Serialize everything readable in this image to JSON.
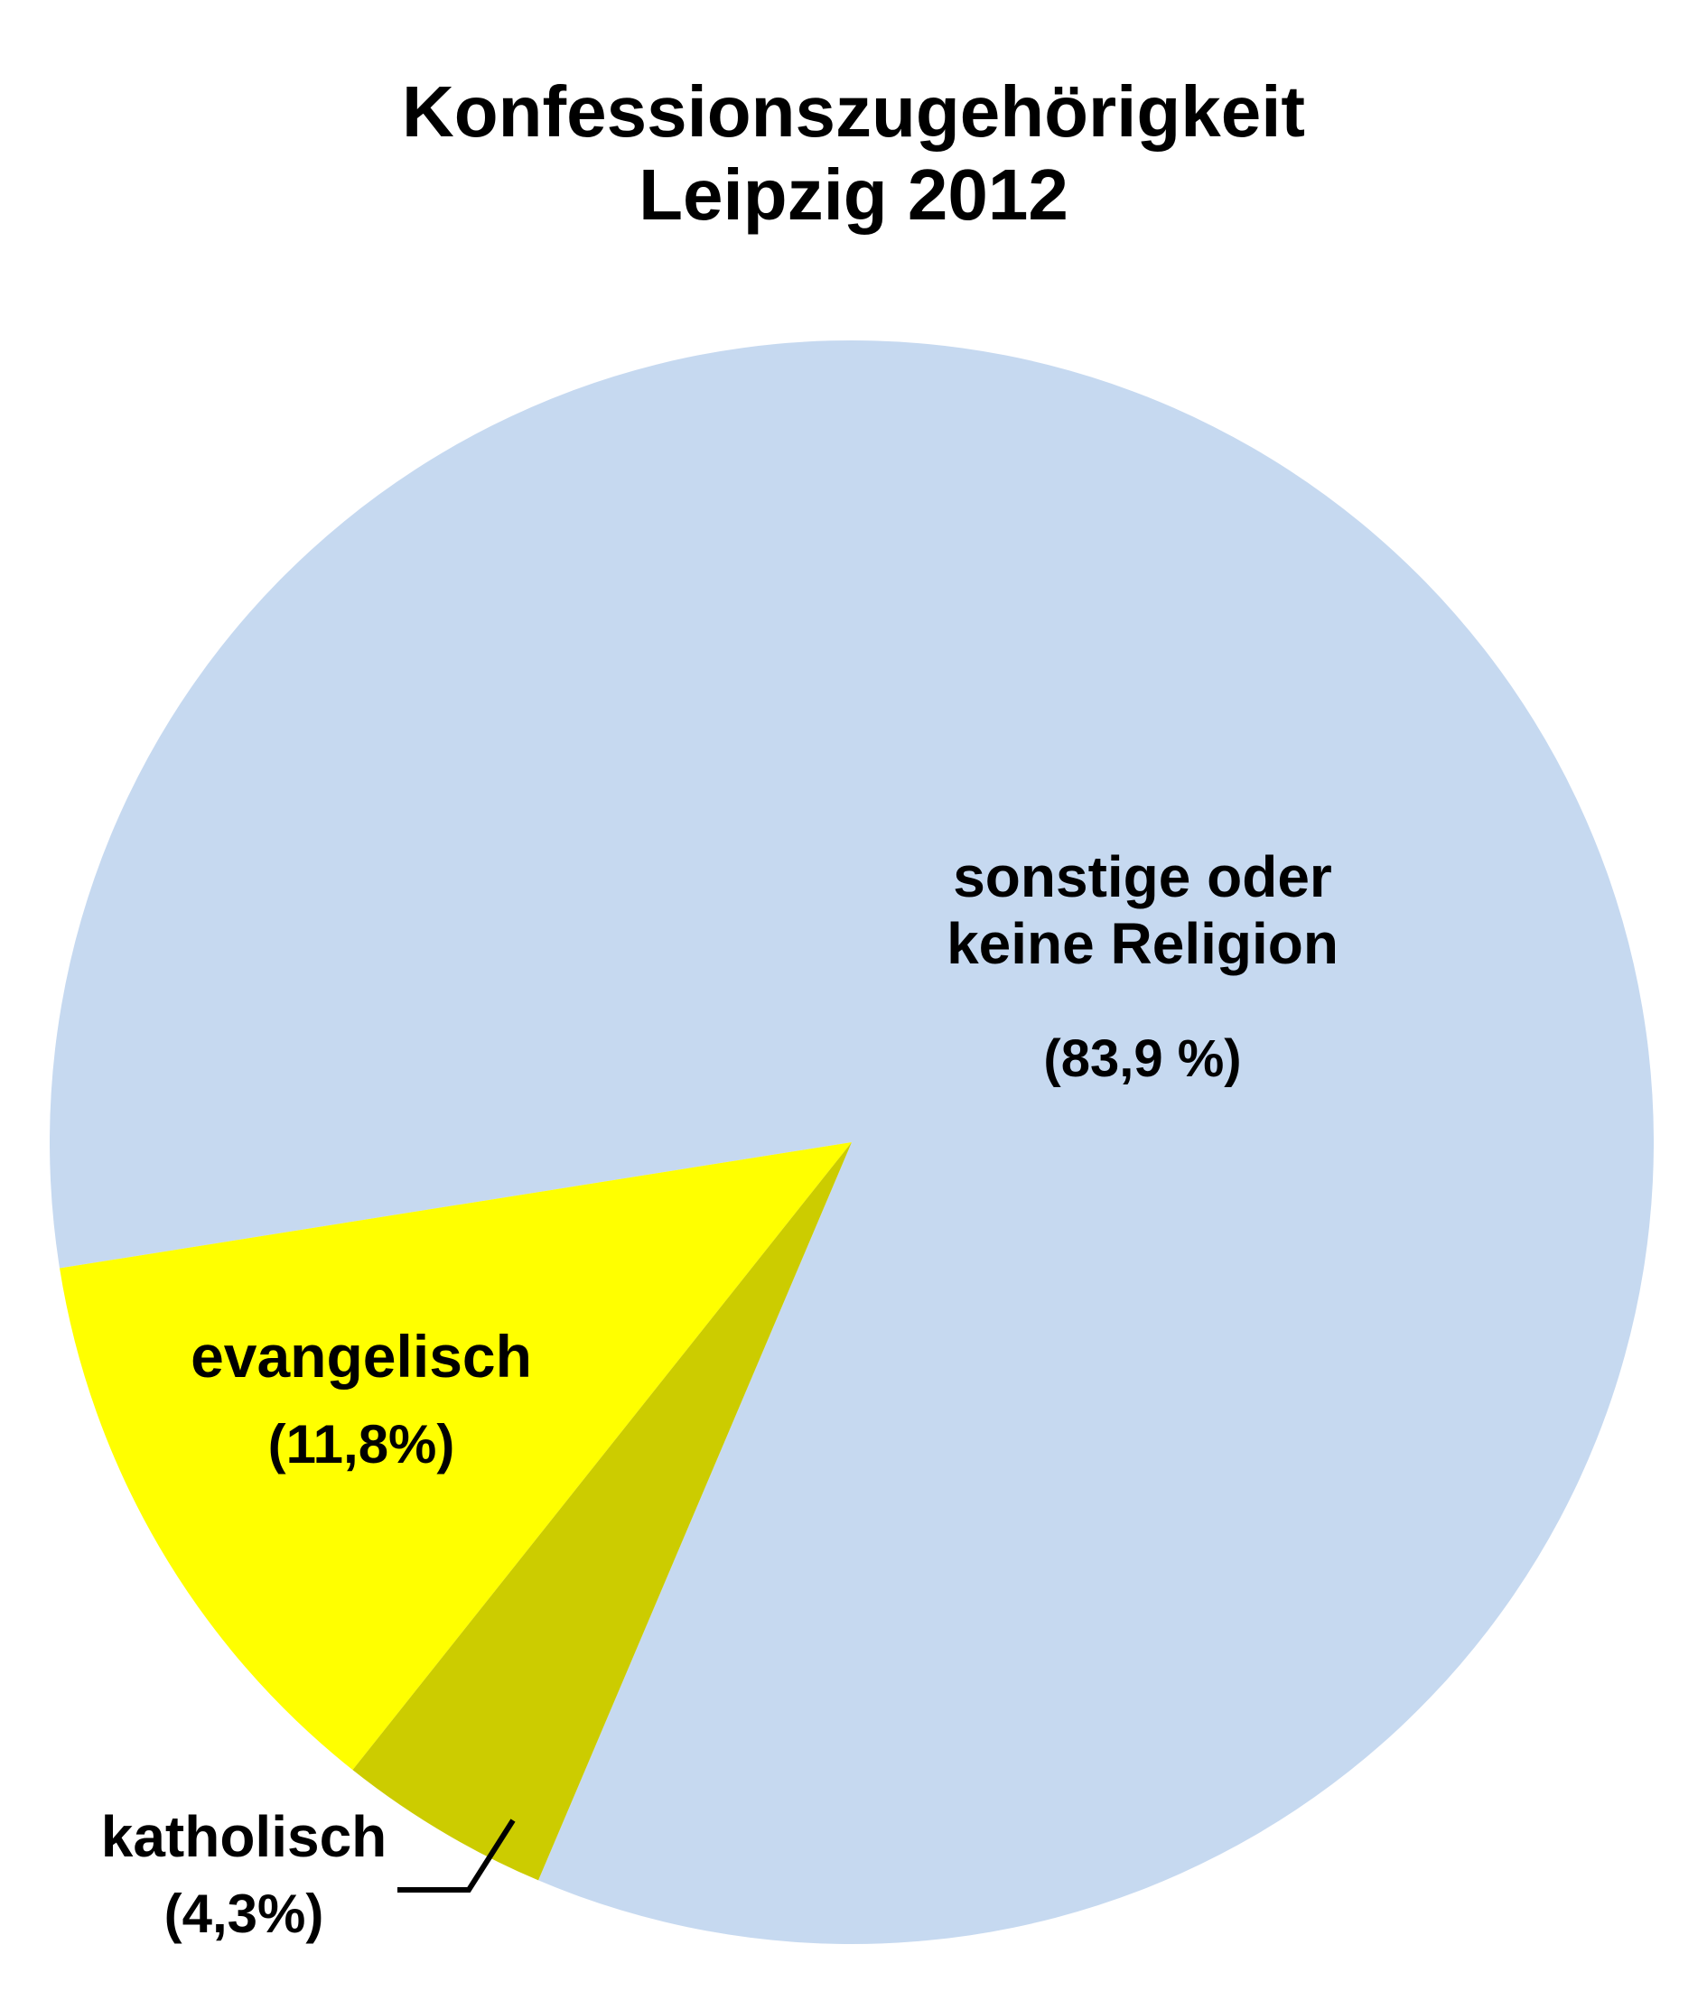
{
  "chart_data": {
    "type": "pie",
    "title": "Konfessionszugehörigkeit Leipzig 2012",
    "categories": [
      "katholisch",
      "evangelisch",
      "sonstige oder keine Religion"
    ],
    "values": [
      4.3,
      11.8,
      83.9
    ],
    "value_labels": [
      "(4,3%)",
      "(11,8%)",
      "(83,9 %)"
    ],
    "colors": [
      "#cccc00",
      "#ffff00",
      "#c6d9f0"
    ]
  }
}
